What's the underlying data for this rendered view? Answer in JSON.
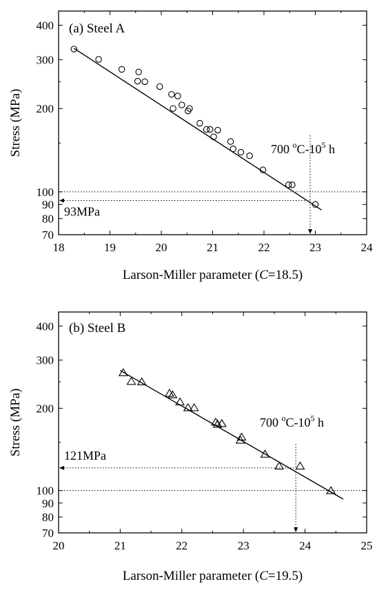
{
  "chart_data": [
    {
      "type": "scatter",
      "panel_label": "(a) Steel A",
      "xlabel_prefix": "Larson-Miller parameter (",
      "xlabel_italic": "C",
      "xlabel_suffix": "=18.5)",
      "ylabel": "Stress (MPa)",
      "xlim": [
        18,
        24
      ],
      "ylim": [
        70,
        450
      ],
      "yscale": "log",
      "xticks": [
        18,
        19,
        20,
        21,
        22,
        23,
        24
      ],
      "yticks": [
        70,
        80,
        90,
        100,
        200,
        300,
        400
      ],
      "marker": "circle",
      "points": [
        [
          18.3,
          328
        ],
        [
          18.78,
          301
        ],
        [
          19.23,
          277
        ],
        [
          19.54,
          251
        ],
        [
          19.56,
          271
        ],
        [
          19.68,
          250
        ],
        [
          19.97,
          240
        ],
        [
          20.2,
          225
        ],
        [
          20.32,
          222
        ],
        [
          20.23,
          200
        ],
        [
          20.4,
          206
        ],
        [
          20.52,
          196
        ],
        [
          20.55,
          200
        ],
        [
          20.75,
          177
        ],
        [
          20.88,
          168
        ],
        [
          20.95,
          168
        ],
        [
          21.02,
          158
        ],
        [
          21.1,
          167
        ],
        [
          21.35,
          152
        ],
        [
          21.4,
          143
        ],
        [
          21.55,
          139
        ],
        [
          21.72,
          135
        ],
        [
          21.98,
          120
        ],
        [
          22.48,
          106
        ],
        [
          22.55,
          106
        ],
        [
          23.0,
          90
        ]
      ],
      "fit": {
        "x": [
          18.3,
          23.12
        ],
        "y": [
          330,
          86
        ]
      },
      "annotation": {
        "temperature": "700 ",
        "degree": "o",
        "unit": "C-10",
        "exponent": "5",
        "time": " h",
        "x_mark": 22.9
      },
      "readout": {
        "label": "93MPa",
        "value": 93
      },
      "ref_value": 100
    },
    {
      "type": "scatter",
      "panel_label": "(b) Steel B",
      "xlabel_prefix": "Larson-Miller parameter (",
      "xlabel_italic": "C",
      "xlabel_suffix": "=19.5)",
      "ylabel": "Stress (MPa)",
      "xlim": [
        20,
        25
      ],
      "ylim": [
        70,
        450
      ],
      "yscale": "log",
      "xticks": [
        20,
        21,
        22,
        23,
        24,
        25
      ],
      "yticks": [
        70,
        80,
        90,
        100,
        200,
        300,
        400
      ],
      "marker": "triangle",
      "points": [
        [
          21.05,
          270
        ],
        [
          21.18,
          251
        ],
        [
          21.35,
          250
        ],
        [
          21.8,
          227
        ],
        [
          21.85,
          224
        ],
        [
          21.97,
          211
        ],
        [
          22.1,
          201
        ],
        [
          22.2,
          201
        ],
        [
          22.55,
          178
        ],
        [
          22.65,
          176
        ],
        [
          22.58,
          175
        ],
        [
          22.97,
          157
        ],
        [
          22.95,
          153
        ],
        [
          23.35,
          136
        ],
        [
          23.58,
          123
        ],
        [
          23.92,
          123
        ],
        [
          24.42,
          100
        ]
      ],
      "fit": {
        "x": [
          21.0,
          24.62
        ],
        "y": [
          275,
          93
        ]
      },
      "annotation": {
        "temperature": "700 ",
        "degree": "o",
        "unit": "C-10",
        "exponent": "5",
        "time": " h",
        "x_mark": 23.85
      },
      "readout": {
        "label": "121MPa",
        "value": 121
      },
      "ref_value": 100
    }
  ]
}
